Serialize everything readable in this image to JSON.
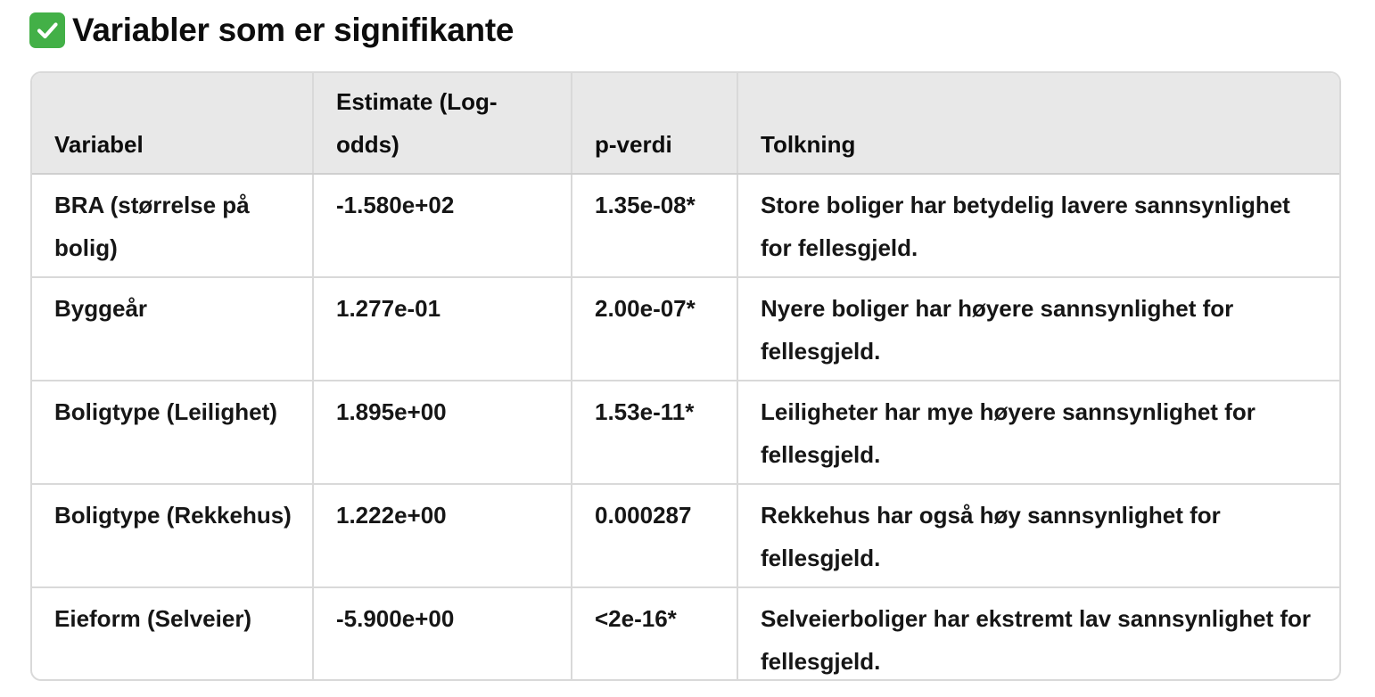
{
  "heading": {
    "icon": "check-mark-button-icon",
    "icon_color": "#43b047",
    "text": "Variabler som er signifikante"
  },
  "table": {
    "columns": [
      "Variabel",
      "Estimate (Log-odds)",
      "p-verdi",
      "Tolkning"
    ],
    "rows": [
      {
        "variabel": "BRA (størrelse på bolig)",
        "estimate": "-1.580e+02",
        "p_verdi": "1.35e-08*",
        "tolkning": "Store boliger har betydelig lavere sannsynlighet for fellesgjeld."
      },
      {
        "variabel": "Byggeår",
        "estimate": "1.277e-01",
        "p_verdi": "2.00e-07*",
        "tolkning": "Nyere boliger har høyere sannsynlighet for fellesgjeld."
      },
      {
        "variabel": "Boligtype (Leilighet)",
        "estimate": "1.895e+00",
        "p_verdi": "1.53e-11*",
        "tolkning": "Leiligheter har mye høyere sannsynlighet for fellesgjeld."
      },
      {
        "variabel": "Boligtype (Rekkehus)",
        "estimate": "1.222e+00",
        "p_verdi": "0.000287",
        "tolkning": "Rekkehus har også høy sannsynlighet for fellesgjeld."
      },
      {
        "variabel": "Eieform (Selveier)",
        "estimate": "-5.900e+00",
        "p_verdi": "<2e-16*",
        "tolkning": "Selveierboliger har ekstremt lav sannsynlighet for fellesgjeld."
      }
    ]
  }
}
